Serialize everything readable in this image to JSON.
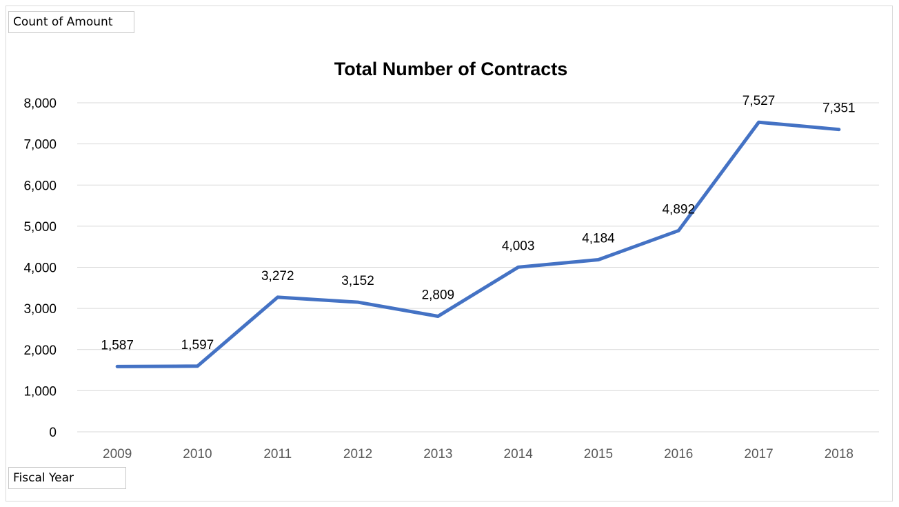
{
  "filter_buttons": {
    "value_field": "Count of Amount",
    "axis_field": "Fiscal Year"
  },
  "chart_data": {
    "type": "line",
    "title": "Total Number of Contracts",
    "xlabel": "",
    "ylabel": "",
    "categories": [
      "2009",
      "2010",
      "2011",
      "2012",
      "2013",
      "2014",
      "2015",
      "2016",
      "2017",
      "2018"
    ],
    "values": [
      1587,
      1597,
      3272,
      3152,
      2809,
      4003,
      4184,
      4892,
      7527,
      7351
    ],
    "data_labels": [
      "1,587",
      "1,597",
      "3,272",
      "3,152",
      "2,809",
      "4,003",
      "4,184",
      "4,892",
      "7,527",
      "7,351"
    ],
    "ylim": [
      0,
      8000
    ],
    "yticks": [
      0,
      1000,
      2000,
      3000,
      4000,
      5000,
      6000,
      7000,
      8000
    ],
    "ytick_labels": [
      "0",
      "1,000",
      "2,000",
      "3,000",
      "4,000",
      "5,000",
      "6,000",
      "7,000",
      "8,000"
    ],
    "grid": true,
    "legend": "none",
    "line_color": "#4472C4",
    "grid_color": "#D9D9D9"
  }
}
